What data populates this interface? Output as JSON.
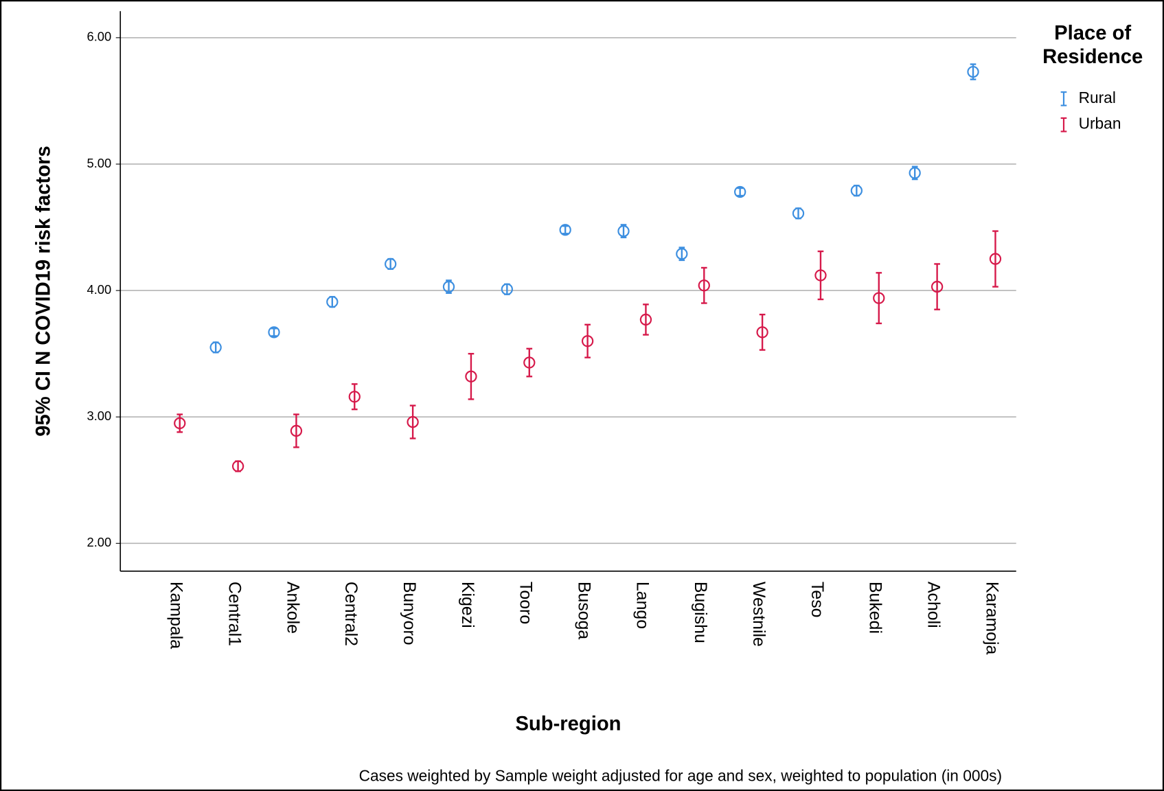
{
  "chart_data": {
    "type": "errorbar",
    "y_label": "95% CI N COVID19 risk factors",
    "x_label": "Sub-region",
    "footnote": "Cases weighted by Sample weight adjusted for age and sex, weighted to population (in 000s)",
    "legend_title": "Place of Residence",
    "legend_position": "right",
    "grid": true,
    "categories": [
      "Kampala",
      "Central1",
      "Ankole",
      "Central2",
      "Bunyoro",
      "Kigezi",
      "Tooro",
      "Busoga",
      "Lango",
      "Bugishu",
      "Westnile",
      "Teso",
      "Bukedi",
      "Acholi",
      "Karamoja"
    ],
    "ylim": [
      1.78,
      6.21
    ],
    "yticks": [
      {
        "value": 2,
        "label": "2.00"
      },
      {
        "value": 3,
        "label": "3.00"
      },
      {
        "value": 4,
        "label": "4.00"
      },
      {
        "value": 5,
        "label": "5.00"
      },
      {
        "value": 6,
        "label": "6.00"
      }
    ],
    "series": [
      {
        "name": "Rural",
        "color": "#3d8fe0",
        "values": [
          null,
          3.55,
          3.67,
          3.91,
          4.21,
          4.03,
          4.01,
          4.48,
          4.47,
          4.29,
          4.78,
          4.61,
          4.79,
          4.93,
          5.73
        ],
        "errors": [
          null,
          0.04,
          0.03,
          0.04,
          0.04,
          0.05,
          0.04,
          0.03,
          0.05,
          0.05,
          0.03,
          0.04,
          0.04,
          0.05,
          0.06
        ]
      },
      {
        "name": "Urban",
        "color": "#d6194a",
        "values": [
          2.95,
          2.61,
          2.89,
          3.16,
          2.96,
          3.32,
          3.43,
          3.6,
          3.77,
          4.04,
          3.67,
          4.12,
          3.94,
          4.03,
          4.25
        ],
        "errors": [
          0.07,
          0.04,
          0.13,
          0.1,
          0.13,
          0.18,
          0.11,
          0.13,
          0.12,
          0.14,
          0.14,
          0.19,
          0.2,
          0.18,
          0.22
        ]
      }
    ]
  }
}
